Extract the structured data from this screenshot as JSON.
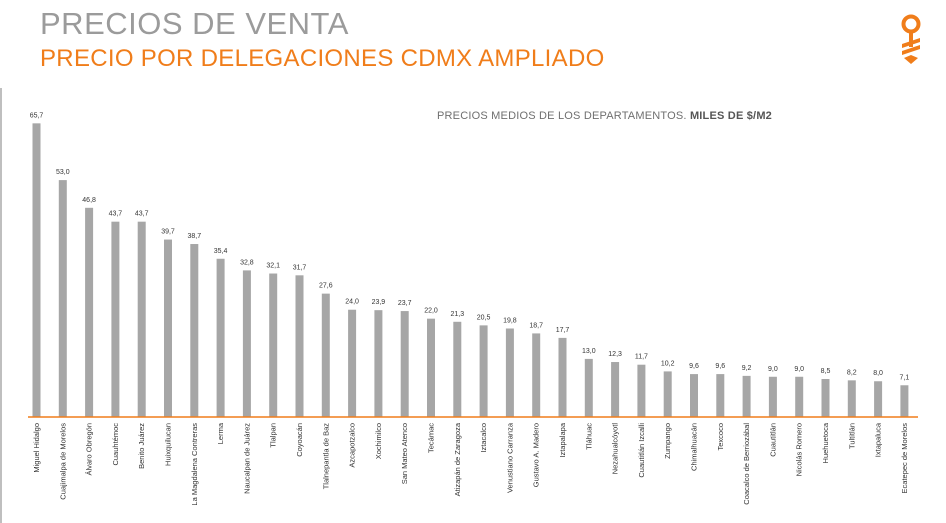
{
  "header": {
    "title": "PRECIOS DE VENTA",
    "subtitle": "PRECIO POR DELEGACIONES CDMX AMPLIADO"
  },
  "note": {
    "prefix": "PRECIOS MEDIOS DE LOS DEPARTAMENTOS.",
    "unit": "MILES DE $/M2"
  },
  "logo": {
    "icon": "brand-key-icon",
    "color": "#f07d1a"
  },
  "colors": {
    "bar": "#a6a6a6",
    "baseline": "#f07d1a",
    "title": "#9b9b9b",
    "subtitle": "#f07d1a"
  },
  "chart_data": {
    "type": "bar",
    "categories": [
      "Miguel Hidalgo",
      "Cuajimalpa de Morelos",
      "Álvaro Obregón",
      "Cuauhtémoc",
      "Benito Juárez",
      "Huixquilucan",
      "La Magdalena Contreras",
      "Lerma",
      "Naucalpan de Juárez",
      "Tlalpan",
      "Coyoacán",
      "Tlalnepantla de Baz",
      "Azcapotzalco",
      "Xochimilco",
      "San Mateo Atenco",
      "Tecámac",
      "Atizapán de Zaragoza",
      "Iztacalco",
      "Venustiano Carranza",
      "Gustavo A. Madero",
      "Iztapalapa",
      "Tláhuac",
      "Nezahualcóyotl",
      "Cuautitlán Izcalli",
      "Zumpango",
      "Chimalhuacán",
      "Texcoco",
      "Coacalco de Berriozábal",
      "Cuautitlán",
      "Nicolás Romero",
      "Huehuetoca",
      "Tultitlán",
      "Ixtapaluca",
      "Ecatepec de Morelos"
    ],
    "values": [
      65.7,
      53.0,
      46.8,
      43.7,
      43.7,
      39.7,
      38.7,
      35.4,
      32.8,
      32.1,
      31.7,
      27.6,
      24.0,
      23.9,
      23.7,
      22.0,
      21.3,
      20.5,
      19.8,
      18.7,
      17.7,
      13.0,
      12.3,
      11.7,
      10.2,
      9.6,
      9.6,
      9.2,
      9.0,
      9.0,
      8.5,
      8.2,
      8.0,
      7.1
    ],
    "labels": [
      "65,7",
      "53,0",
      "46,8",
      "43,7",
      "43,7",
      "39,7",
      "38,7",
      "35,4",
      "32,8",
      "32,1",
      "31,7",
      "27,6",
      "24,0",
      "23,9",
      "23,7",
      "22,0",
      "21,3",
      "20,5",
      "19,8",
      "18,7",
      "17,7",
      "13,0",
      "12,3",
      "11,7",
      "10,2",
      "9,6",
      "9,6",
      "9,2",
      "9,0",
      "9,0",
      "8,5",
      "8,2",
      "8,0",
      "7,1"
    ],
    "title": "",
    "xlabel": "",
    "ylabel": "",
    "ylim": [
      0,
      66
    ],
    "grid": false,
    "legend": "none"
  }
}
